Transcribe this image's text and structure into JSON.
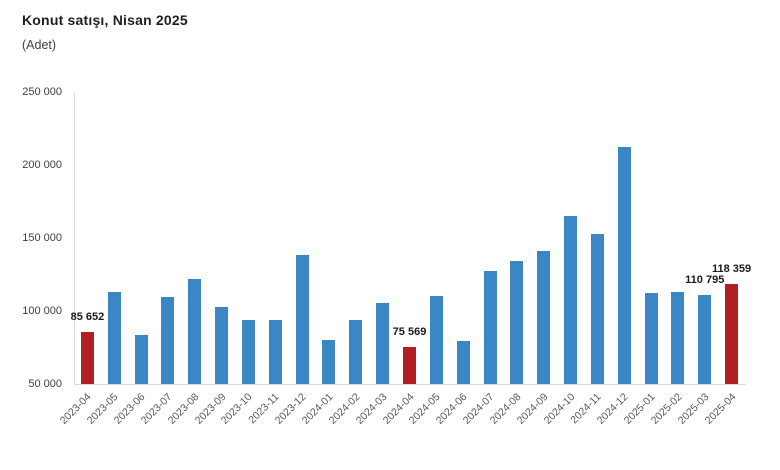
{
  "page": {
    "title": "Konut satışı, Nisan 2025",
    "subtitle": "(Adet)"
  },
  "chart_data": {
    "type": "bar",
    "title": "Konut satışı, Nisan 2025",
    "subtitle": "(Adet)",
    "unit": "Adet",
    "categories": [
      "2023-04",
      "2023-05",
      "2023-06",
      "2023-07",
      "2023-08",
      "2023-09",
      "2023-10",
      "2023-11",
      "2023-12",
      "2024-01",
      "2024-02",
      "2024-03",
      "2024-04",
      "2024-05",
      "2024-06",
      "2024-07",
      "2024-08",
      "2024-09",
      "2024-10",
      "2024-11",
      "2024-12",
      "2025-01",
      "2025-02",
      "2025-03",
      "2025-04"
    ],
    "values": [
      85652,
      113175,
      83636,
      109548,
      122091,
      102656,
      93761,
      93514,
      138577,
      80308,
      93902,
      105394,
      75569,
      110588,
      79313,
      127088,
      134155,
      140919,
      165138,
      153014,
      212637,
      112173,
      112818,
      110795,
      118359
    ],
    "highlight_indices": [
      0,
      12,
      24
    ],
    "data_labels": [
      {
        "index": 0,
        "text": "85 652"
      },
      {
        "index": 12,
        "text": "75 569"
      },
      {
        "index": 23,
        "text": "110 795"
      },
      {
        "index": 24,
        "text": "118 359"
      }
    ],
    "ylim": [
      50000,
      250000
    ],
    "yticks": [
      {
        "value": 50000,
        "label": "50 000"
      },
      {
        "value": 100000,
        "label": "100 000"
      },
      {
        "value": 150000,
        "label": "150 000"
      },
      {
        "value": 200000,
        "label": "200 000"
      },
      {
        "value": 250000,
        "label": "250 000"
      }
    ],
    "grid": false,
    "legend": false,
    "colors": {
      "bar": "#3B86C4",
      "highlight": "#B01F24",
      "axis_line": "#D9D9D9",
      "y_tick_text": "#404040",
      "x_tick_text": "#595959",
      "data_label_text": "#1A1A1A",
      "title_text": "#1F1F1F"
    }
  }
}
